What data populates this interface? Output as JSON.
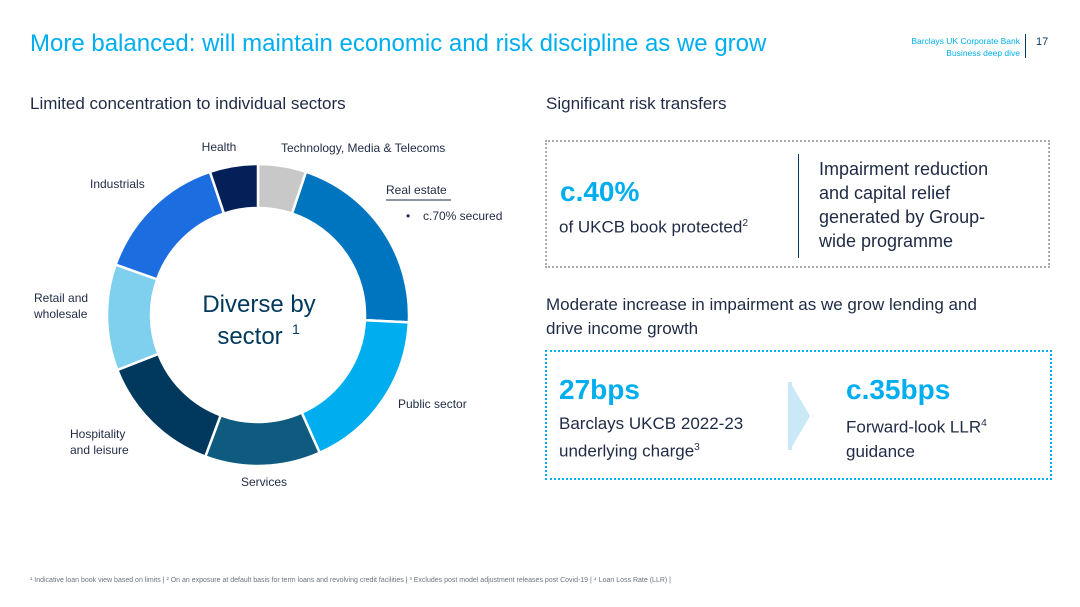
{
  "header": {
    "title": "More balanced: will maintain economic and risk discipline as we grow",
    "brand_line1": "Barclays UK Corporate Bank",
    "brand_line2": "Business deep dive",
    "page_number": "17"
  },
  "left_heading": "Limited concentration to individual sectors",
  "chart_data": {
    "type": "pie",
    "title": "Diverse by sector",
    "title_sup": "1",
    "categories": [
      "Technology, Media & Telecoms",
      "Real estate",
      "Public sector",
      "Services",
      "Hospitality and leisure",
      "Retail and wholesale",
      "Industrials",
      "Health"
    ],
    "values": [
      5,
      20,
      17,
      12,
      13,
      11,
      14,
      5
    ],
    "colors": [
      "#c8c8c8",
      "#0075bf",
      "#00aeef",
      "#0e5b7f",
      "#00395d",
      "#7fcfee",
      "#1c6ee0",
      "#051f59"
    ],
    "label_lines": {
      "tmt": "Technology, Media & Telecoms",
      "real_estate": "Real estate",
      "real_estate_note": "c.70% secured",
      "public": "Public sector",
      "services": "Services",
      "hosp1": "Hospitality",
      "hosp2": "and leisure",
      "retail1": "Retail and",
      "retail2": "wholesale",
      "industrials": "Industrials",
      "health": "Health",
      "center1": "Diverse by",
      "center2": "sector"
    }
  },
  "right": {
    "heading1": "Significant risk transfers",
    "box1": {
      "big": "c.40%",
      "sub": "of UKCB book protected",
      "sub_sup": "2",
      "desc1": "Impairment reduction",
      "desc2": "and capital relief",
      "desc3": "generated by Group-",
      "desc4": "wide programme"
    },
    "heading2_line1": "Moderate increase in impairment as we grow lending and",
    "heading2_line2": "drive income growth",
    "box2": {
      "left_big": "27bps",
      "left_sub1": "Barclays UKCB 2022-23",
      "left_sub2": "underlying charge",
      "left_sup": "3",
      "right_big": "c.35bps",
      "right_sub1": "Forward-look LLR",
      "right_sup": "4",
      "right_sub2": "guidance"
    }
  },
  "footnote": "¹ Indicative loan book view based on limits | ² On an exposure at default basis for term loans and revolving credit facilities | ³ Excludes post model adjustment releases post Covid-19 | ⁴ Loan Loss Rate (LLR) |"
}
